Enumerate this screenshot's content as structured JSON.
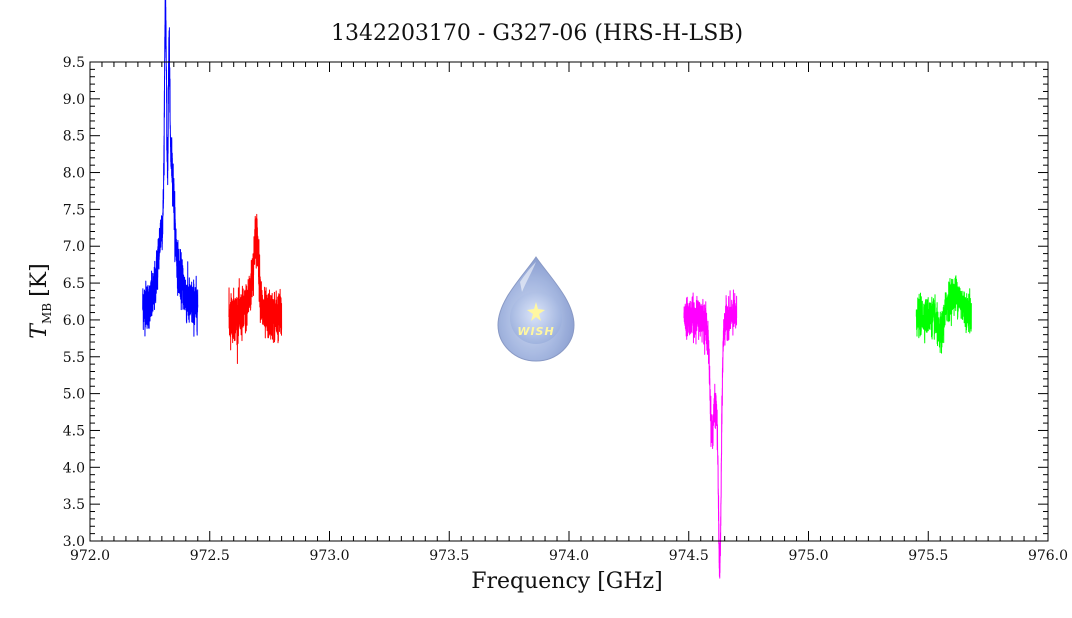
{
  "chart_data": {
    "type": "line",
    "title": "1342203170 - G327-06 (HRS-H-LSB)",
    "xlabel": "Frequency [GHz]",
    "ylabel_main": "T",
    "ylabel_sub": "MB",
    "ylabel_unit": "[K]",
    "xlim": [
      972.0,
      976.0
    ],
    "ylim": [
      3.0,
      9.5
    ],
    "x_ticks": [
      "972.0",
      "972.5",
      "973.0",
      "973.5",
      "974.0",
      "974.5",
      "975.0",
      "975.5",
      "976.0"
    ],
    "y_ticks": [
      "3.0",
      "3.5",
      "4.0",
      "4.5",
      "5.0",
      "5.5",
      "6.0",
      "6.5",
      "7.0",
      "7.5",
      "8.0",
      "8.5",
      "9.0",
      "9.5"
    ],
    "grid": false,
    "logo_text": "WISH",
    "series": [
      {
        "color": "#0000ff",
        "x_range": [
          972.22,
          972.45
        ],
        "baseline": 6.2,
        "noise": 0.16,
        "features": [
          {
            "center": 972.315,
            "amp": 3.0,
            "width": 0.004
          },
          {
            "center": 972.305,
            "amp": 1.1,
            "width": 0.02
          },
          {
            "center": 972.34,
            "amp": 1.6,
            "width": 0.012
          },
          {
            "center": 972.33,
            "amp": 1.9,
            "width": 0.003
          },
          {
            "center": 972.37,
            "amp": 0.4,
            "width": 0.02
          }
        ]
      },
      {
        "color": "#ff0000",
        "x_range": [
          972.58,
          972.8
        ],
        "baseline": 6.05,
        "noise": 0.16,
        "features": [
          {
            "center": 972.695,
            "amp": 0.85,
            "width": 0.01
          },
          {
            "center": 972.68,
            "amp": 0.35,
            "width": 0.02
          }
        ]
      },
      {
        "color": "#ff00ff",
        "x_range": [
          974.48,
          974.7
        ],
        "baseline": 6.05,
        "noise": 0.12,
        "features": [
          {
            "center": 974.63,
            "amp": -2.75,
            "width": 0.006
          },
          {
            "center": 974.61,
            "amp": -1.2,
            "width": 0.018
          },
          {
            "center": 974.595,
            "amp": -0.7,
            "width": 0.006
          }
        ]
      },
      {
        "color": "#00ff00",
        "x_range": [
          975.45,
          975.68
        ],
        "baseline": 6.05,
        "noise": 0.12,
        "features": [
          {
            "center": 975.61,
            "amp": 0.3,
            "width": 0.03
          },
          {
            "center": 975.55,
            "amp": -0.3,
            "width": 0.012
          }
        ]
      }
    ]
  }
}
